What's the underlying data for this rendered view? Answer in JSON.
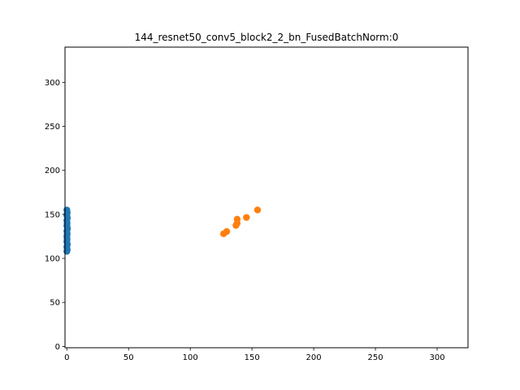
{
  "chart_data": {
    "type": "scatter",
    "title": "144_resnet50_conv5_block2_2_bn_FusedBatchNorm:0",
    "xlabel": "",
    "ylabel": "",
    "xlim": [
      -1.5,
      325
    ],
    "ylim": [
      -1.5,
      340
    ],
    "xticks": [
      0,
      50,
      100,
      150,
      200,
      250,
      300
    ],
    "yticks": [
      0,
      50,
      100,
      150,
      200,
      250,
      300
    ],
    "grid": false,
    "series": [
      {
        "color": "#1f77b4",
        "points": [
          [
            0,
            155
          ],
          [
            0.3,
            152
          ],
          [
            0,
            149
          ],
          [
            0.4,
            146
          ],
          [
            0,
            143
          ],
          [
            0.2,
            140
          ],
          [
            0,
            137
          ],
          [
            0.5,
            134
          ],
          [
            0,
            131
          ],
          [
            0.3,
            128
          ],
          [
            0,
            125
          ],
          [
            0.2,
            122
          ],
          [
            0,
            119
          ],
          [
            0.4,
            116
          ],
          [
            0,
            113
          ],
          [
            0.3,
            110
          ],
          [
            0,
            108
          ]
        ]
      },
      {
        "color": "#ff7f0e",
        "points": [
          [
            127,
            128
          ],
          [
            129.5,
            130.5
          ],
          [
            137,
            137.5
          ],
          [
            138,
            140
          ],
          [
            138,
            144.5
          ],
          [
            145.5,
            146.5
          ],
          [
            154.5,
            155
          ]
        ]
      }
    ]
  }
}
